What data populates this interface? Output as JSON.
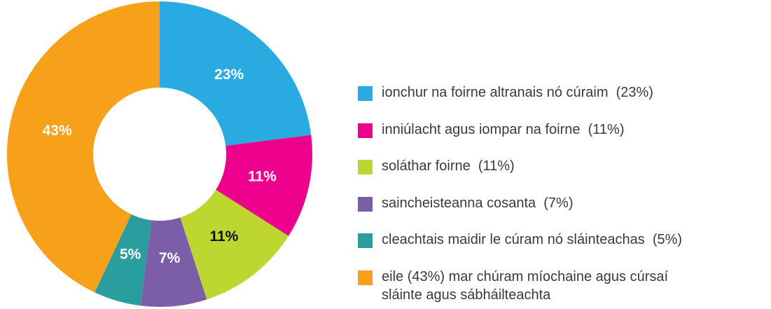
{
  "chart_data": {
    "type": "donut",
    "categories": [
      "ionchur na foirne altranais nó cúraim  (23%)",
      "inniúlacht agus iompar na foirne  (11%)",
      "soláthar foirne  (11%)",
      "saincheisteanna cosanta  (7%)",
      "cleachtais maidir le cúram nó sláinteachas  (5%)",
      "eile (43%) mar chúram míochaine agus cúrsaí\nsláinte agus sábháilteachta"
    ],
    "values": [
      23,
      11,
      11,
      7,
      5,
      43
    ],
    "value_labels": [
      "23%",
      "11%",
      "11%",
      "7%",
      "5%",
      "43%"
    ],
    "colors": [
      "#29abe2",
      "#ec008c",
      "#bed630",
      "#7b5ea7",
      "#2a9d9f",
      "#f7a11a"
    ],
    "label_colors": [
      "#ffffff",
      "#ffffff",
      "#111111",
      "#ffffff",
      "#ffffff",
      "#ffffff"
    ]
  }
}
